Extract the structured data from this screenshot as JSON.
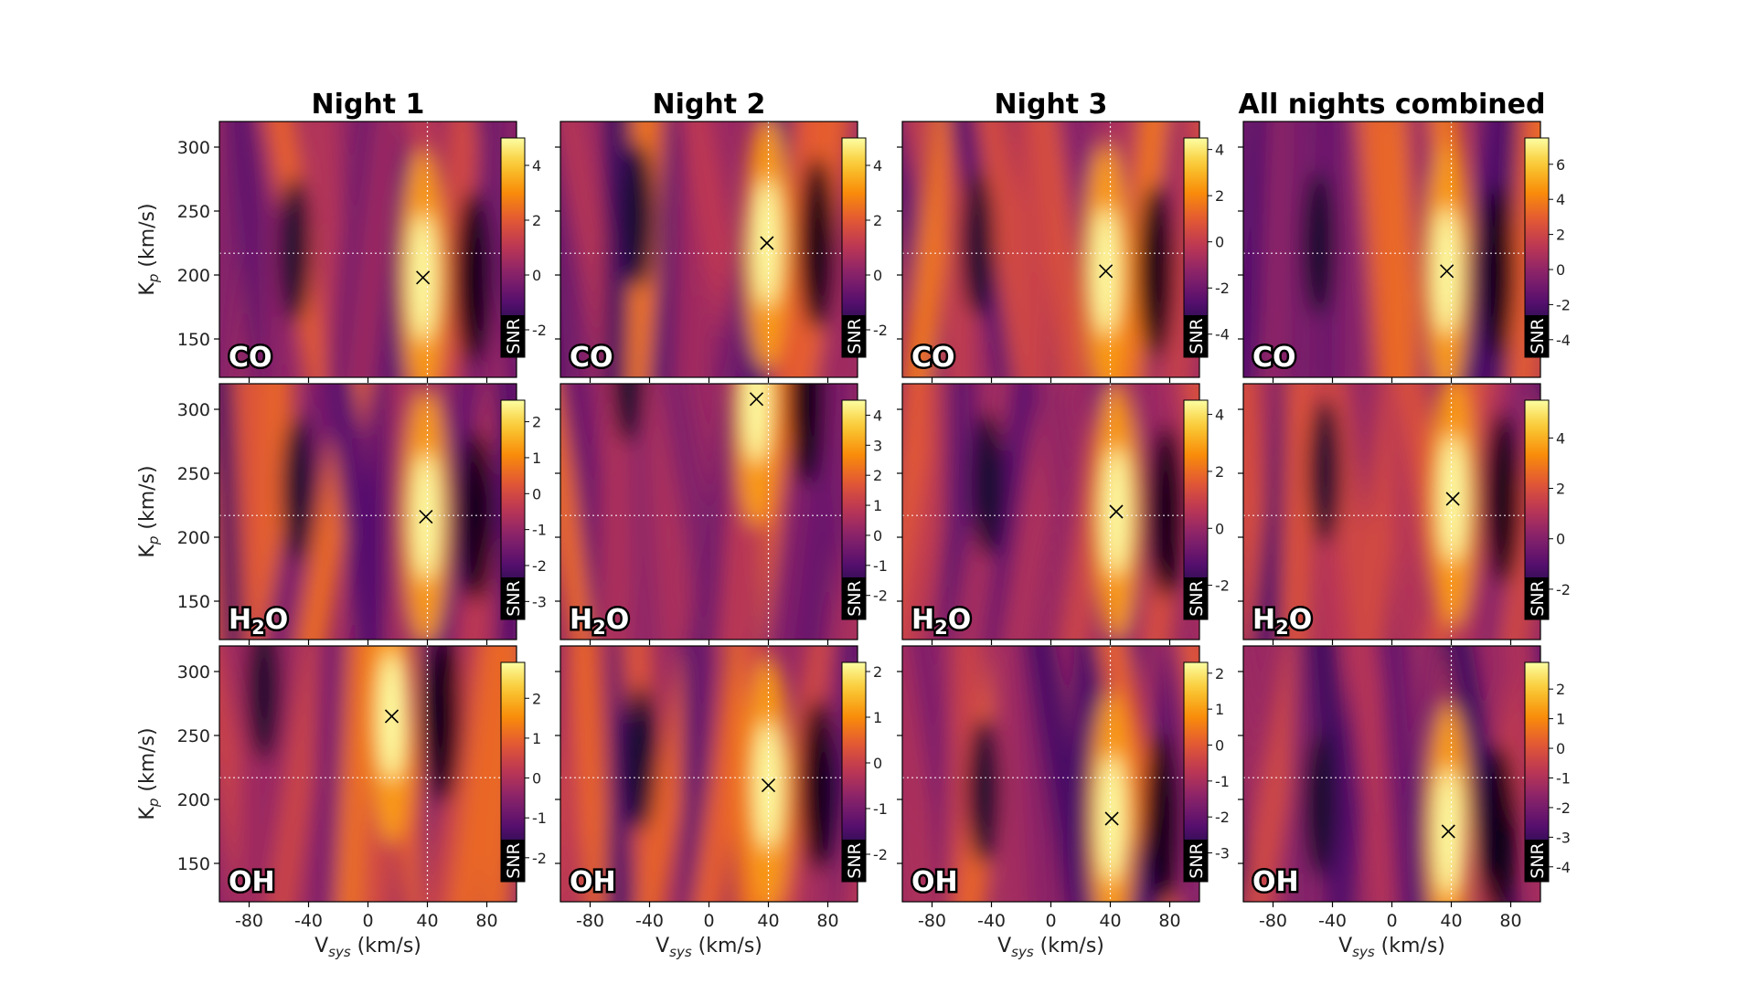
{
  "chart_data": {
    "type": "heatmap",
    "colormap": "inferno",
    "columns": [
      "Night 1",
      "Night 2",
      "Night 3",
      "All nights combined"
    ],
    "rows": [
      "CO",
      "H2O",
      "OH"
    ],
    "xlabel": "V_sys (km/s)",
    "ylabel": "K_p (km/s)",
    "xlim": [
      -100,
      100
    ],
    "ylim": [
      120,
      320
    ],
    "xticks": [
      -80,
      -40,
      0,
      40,
      80
    ],
    "yticks": [
      150,
      200,
      250,
      300
    ],
    "reference_lines": {
      "vsys": 40,
      "kp": 217
    },
    "colorbar_label": "SNR",
    "panels": [
      {
        "column": "Night 1",
        "species": "CO",
        "peak": {
          "vsys": 37,
          "kp": 198
        },
        "colorbar_ticks": [
          -2,
          0,
          2,
          4
        ],
        "snr_range": [
          -3,
          5
        ]
      },
      {
        "column": "Night 2",
        "species": "CO",
        "peak": {
          "vsys": 39,
          "kp": 225
        },
        "colorbar_ticks": [
          -2,
          0,
          2,
          4
        ],
        "snr_range": [
          -3,
          5
        ]
      },
      {
        "column": "Night 3",
        "species": "CO",
        "peak": {
          "vsys": 37,
          "kp": 203
        },
        "colorbar_ticks": [
          -4,
          -2,
          0,
          2,
          4
        ],
        "snr_range": [
          -5,
          4.5
        ]
      },
      {
        "column": "All nights combined",
        "species": "CO",
        "peak": {
          "vsys": 37,
          "kp": 203
        },
        "colorbar_ticks": [
          -4,
          -2,
          0,
          2,
          4,
          6
        ],
        "snr_range": [
          -5,
          7.5
        ]
      },
      {
        "column": "Night 1",
        "species": "H2O",
        "peak": {
          "vsys": 39,
          "kp": 216
        },
        "colorbar_ticks": [
          -3,
          -2,
          -1,
          0,
          1,
          2
        ],
        "snr_range": [
          -3.5,
          2.6
        ]
      },
      {
        "column": "Night 2",
        "species": "H2O",
        "peak": {
          "vsys": 32,
          "kp": 308
        },
        "colorbar_ticks": [
          -2,
          -1,
          0,
          1,
          2,
          3,
          4
        ],
        "snr_range": [
          -2.8,
          4.5
        ]
      },
      {
        "column": "Night 3",
        "species": "H2O",
        "peak": {
          "vsys": 44,
          "kp": 220
        },
        "colorbar_ticks": [
          -2,
          0,
          2,
          4
        ],
        "snr_range": [
          -3.2,
          4.5
        ]
      },
      {
        "column": "All nights combined",
        "species": "H2O",
        "peak": {
          "vsys": 41,
          "kp": 230
        },
        "colorbar_ticks": [
          -2,
          0,
          2,
          4
        ],
        "snr_range": [
          -3.2,
          5.5
        ]
      },
      {
        "column": "Night 1",
        "species": "OH",
        "peak": {
          "vsys": 16,
          "kp": 265
        },
        "colorbar_ticks": [
          -2,
          -1,
          0,
          1,
          2
        ],
        "snr_range": [
          -2.6,
          2.9
        ]
      },
      {
        "column": "Night 2",
        "species": "OH",
        "peak": {
          "vsys": 40,
          "kp": 211
        },
        "colorbar_ticks": [
          -2,
          -1,
          0,
          1,
          2
        ],
        "snr_range": [
          -2.6,
          2.2
        ]
      },
      {
        "column": "Night 3",
        "species": "OH",
        "peak": {
          "vsys": 41,
          "kp": 185
        },
        "colorbar_ticks": [
          -3,
          -2,
          -1,
          0,
          1,
          2
        ],
        "snr_range": [
          -3.8,
          2.3
        ]
      },
      {
        "column": "All nights combined",
        "species": "OH",
        "peak": {
          "vsys": 38,
          "kp": 175
        },
        "colorbar_ticks": [
          -4,
          -3,
          -2,
          -1,
          0,
          1,
          2
        ],
        "snr_range": [
          -4.5,
          2.9
        ]
      }
    ]
  },
  "labels": {
    "xlabel_main": "V",
    "xlabel_sub": "sys",
    "xlabel_unit": " (km/s)",
    "ylabel_main": "K",
    "ylabel_sub": "p",
    "ylabel_unit": " (km/s)",
    "h2o_main1": "H",
    "h2o_sub": "2",
    "h2o_main2": "O"
  }
}
